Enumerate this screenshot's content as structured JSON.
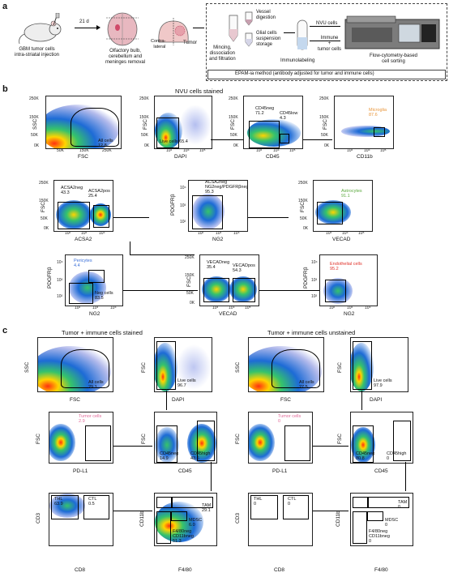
{
  "panel_a": {
    "letter": "a",
    "mouse_caption": "GBM tumor cells\nintra-striatal injection",
    "days_label": "21 d",
    "brain_caption": "Olfactory bulb,\ncerebellum and\nmeninges removal",
    "contralateral": "Contra-\nlateral",
    "tumor": "Tumor",
    "mincing": "Mincing,\ndissociation\nand filtration",
    "vessel": "Vessel\ndigestion",
    "glial": "Glial cells\nsuspension\nstorage",
    "immunolabeling": "Immunolabeling",
    "nvu_cells": "NVU cells",
    "immune_tumor": "Immune\n+\ntumor cells",
    "sorting": "Flow-cytometry-based\ncell sorting",
    "epam": "EPAM-ia method (antibody adjusted for tumor and immune cells)"
  },
  "panel_b": {
    "letter": "b",
    "title": "NVU cells stained",
    "plots": {
      "p1": {
        "y": "SSC",
        "x": "FSC",
        "gate": "All cells\n12.8",
        "yticks": [
          "250K",
          "150K",
          "50K",
          "0K"
        ],
        "xticks": [
          "50K",
          "150K",
          "250K"
        ]
      },
      "p2": {
        "y": "FSC",
        "x": "DAPI",
        "gate": "Live cells 65.4",
        "yticks": [
          "250K",
          "150K",
          "50K",
          "0K"
        ],
        "xticks": [
          "10³",
          "10⁴",
          "10⁵"
        ]
      },
      "p3": {
        "y": "FSC",
        "x": "CD45",
        "gate1": "CD45neg\n71.2",
        "gate2": "CD45low\n4.3",
        "yticks": [
          "250K",
          "150K",
          "50K",
          "0K"
        ],
        "xticks": [
          "10³",
          "10⁴",
          "10⁵"
        ]
      },
      "p4": {
        "y": "FSC",
        "x": "CD11b",
        "gate": "Microglia\n87.6",
        "yticks": [
          "250K",
          "150K",
          "50K",
          "0K"
        ],
        "xticks": [
          "10³",
          "10⁴",
          "10⁵"
        ]
      },
      "p5": {
        "y": "FSC",
        "x": "ACSA2",
        "gate1": "ACSA2neg\n43.3",
        "gate2": "ACSA2pos\n25.4",
        "yticks": [
          "250K",
          "150K",
          "50K",
          "0K"
        ],
        "xticks": [
          "10²",
          "10³",
          "10⁴"
        ]
      },
      "p6": {
        "y": "PDGFRβ",
        "x": "NG2",
        "gate": "ACSA2neg\nNG2neg/PDGFRβneg\n95.3",
        "yticks": [
          "10⁴",
          "10³",
          "10²"
        ],
        "xticks": [
          "10²",
          "10³",
          "10⁴"
        ]
      },
      "p7": {
        "y": "FSC",
        "x": "VECAD",
        "gate": "Astrocytes\n91.1",
        "yticks": [
          "250K",
          "150K",
          "50K",
          "0K"
        ],
        "xticks": [
          "10³",
          "10⁴",
          "10⁵"
        ]
      },
      "p8": {
        "y": "PDGFRβ",
        "x": "NG2",
        "gate1": "Pericytes\n4.4",
        "gate2": "Neg cells\n83.5",
        "yticks": [
          "10⁴",
          "10³",
          "10²"
        ],
        "xticks": [
          "10²",
          "10³",
          "10⁴"
        ]
      },
      "p9": {
        "y": "FSC",
        "x": "VECAD",
        "gate1": "VECADneg\n35.4",
        "gate2": "VECADpos\n54.3",
        "yticks": [
          "250K",
          "150K",
          "50K",
          "0K"
        ],
        "xticks": [
          "10³",
          "10⁴",
          "10⁵"
        ]
      },
      "p10": {
        "y": "PDGFRβ",
        "x": "NG2",
        "gate": "Endothelial cells\n95.2",
        "yticks": [
          "10⁴",
          "10³",
          "10²"
        ],
        "xticks": [
          "10²",
          "10³",
          "10⁴"
        ]
      }
    }
  },
  "panel_c": {
    "letter": "c",
    "title_left": "Tumor + immune cells stained",
    "title_right": "Tumor + immune cells unstained",
    "left": {
      "p1": {
        "y": "SSC",
        "x": "FSC",
        "gate": "All cells\n29.1"
      },
      "p2": {
        "y": "FSC",
        "x": "DAPI",
        "gate": "Live cells\n96.7"
      },
      "p3": {
        "y": "FSC",
        "x": "PD-L1",
        "gate": "Tumor cells\n2.9"
      },
      "p4": {
        "y": "FSC",
        "x": "CD45",
        "gate1": "CD45neg\n14.9",
        "gate2": "CD45high\n43.6"
      },
      "p5": {
        "y": "CD3",
        "x": "CD8",
        "gate1": "THL\n63.9",
        "gate2": "CTL\n0.5"
      },
      "p6": {
        "y": "CD11b",
        "x": "F4/80",
        "gate1": "TAM\n29.1",
        "gate2": "MDSC\n6.0",
        "gate3": "F4/80neg\nCD11bneg\n51.3"
      }
    },
    "right": {
      "p1": {
        "y": "SSC",
        "x": "FSC",
        "gate": "All cells\n27.5"
      },
      "p2": {
        "y": "FSC",
        "x": "DAPI",
        "gate": "Live cells\n97.9"
      },
      "p3": {
        "y": "FSC",
        "x": "PD-L1",
        "gate": "Tumor cells\n0"
      },
      "p4": {
        "y": "FSC",
        "x": "CD45",
        "gate1": "CD45neg\n80.8",
        "gate2": "CD45high\n0"
      },
      "p5": {
        "y": "CD3",
        "x": "CD8",
        "gate1": "THL\n0",
        "gate2": "CTL\n0"
      },
      "p6": {
        "y": "CD11b",
        "x": "F4/80",
        "gate1": "TAM\n0",
        "gate2": "MDSC\n0",
        "gate3": "F4/80neg\nCD11bneg\n0"
      }
    }
  },
  "colors": {
    "microglia": "#e8963a",
    "astrocytes": "#5aa83c",
    "pericytes": "#3a6fd8",
    "endothelial": "#e0332b",
    "tumor": "#e26a9a"
  }
}
